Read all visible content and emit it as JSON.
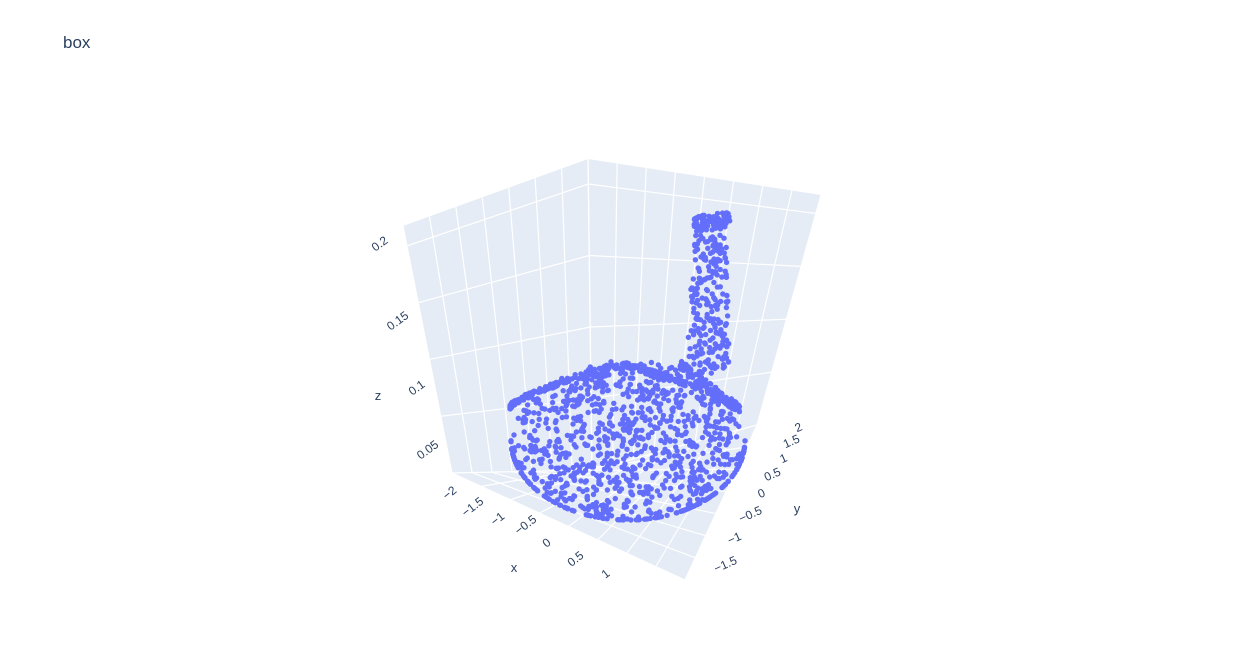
{
  "chart_data": {
    "type": "scatter",
    "title": "box",
    "xlabel": "x",
    "ylabel": "y",
    "zlabel": "z",
    "xlim": [
      -2,
      1.2
    ],
    "ylim": [
      -1.8,
      2.1
    ],
    "zlim": [
      0.01,
      0.21
    ],
    "x_ticks": [
      "−2",
      "−1.5",
      "−1",
      "−0.5",
      "0",
      "0.5",
      "1"
    ],
    "y_ticks": [
      "−1.5",
      "−1",
      "−0.5",
      "0",
      "0.5",
      "1",
      "1.5",
      "2"
    ],
    "z_ticks": [
      "0.05",
      "0.1",
      "0.15",
      "0.2"
    ],
    "marker_color": "#636efa",
    "scene_background": "#e5ecf6",
    "grid": true,
    "series": [
      {
        "shape": "point cloud of a rounded bowl-shaped base with a tall vertical tail column rising at the back",
        "base_center": [
          0,
          0,
          0.03
        ],
        "base_radius": 1.4,
        "column_location": [
          0.6,
          1.7
        ],
        "column_height": [
          0.03,
          0.2
        ]
      }
    ]
  }
}
